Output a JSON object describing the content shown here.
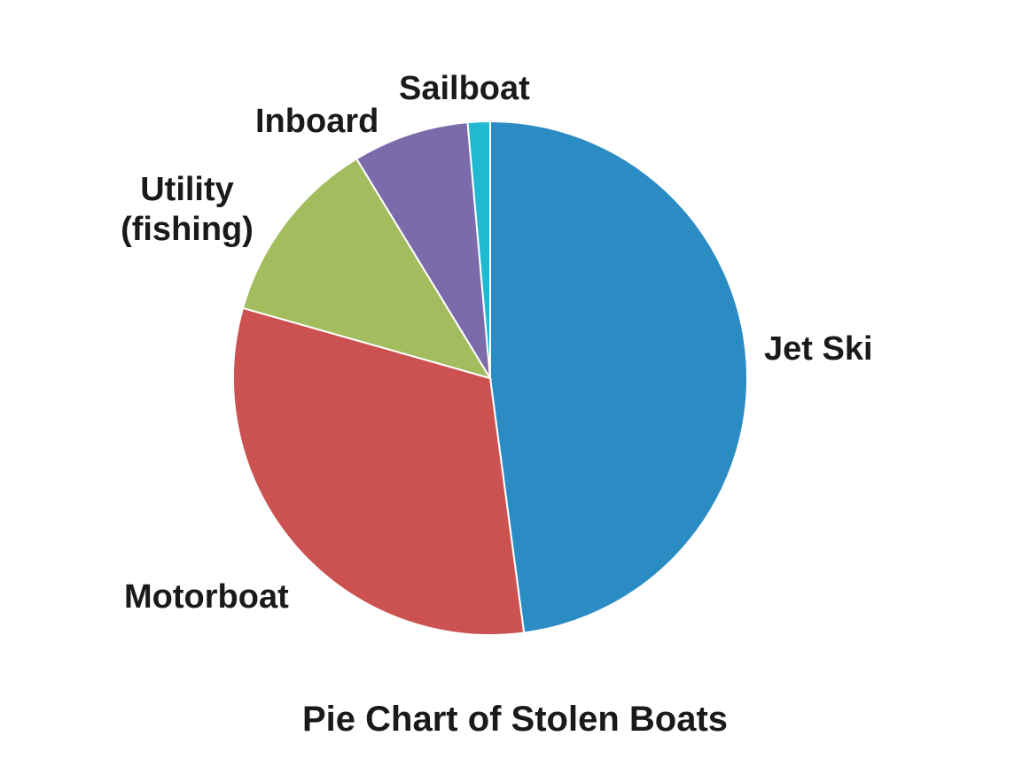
{
  "chart_data": {
    "type": "pie",
    "title": "Pie Chart of Stolen Boats",
    "start_angle_deg": 0,
    "direction": "clockwise",
    "slices": [
      {
        "name": "Jet Ski",
        "value": 47.9,
        "color": "#2b8cc4"
      },
      {
        "name": "Motorboat",
        "value": 31.5,
        "color": "#cc5252"
      },
      {
        "name": "Utility\n(fishing)",
        "value": 11.9,
        "color": "#a2bc5e"
      },
      {
        "name": "Inboard",
        "value": 7.3,
        "color": "#7b6bab"
      },
      {
        "name": "Sailboat",
        "value": 1.4,
        "color": "#1fbad1"
      }
    ]
  }
}
